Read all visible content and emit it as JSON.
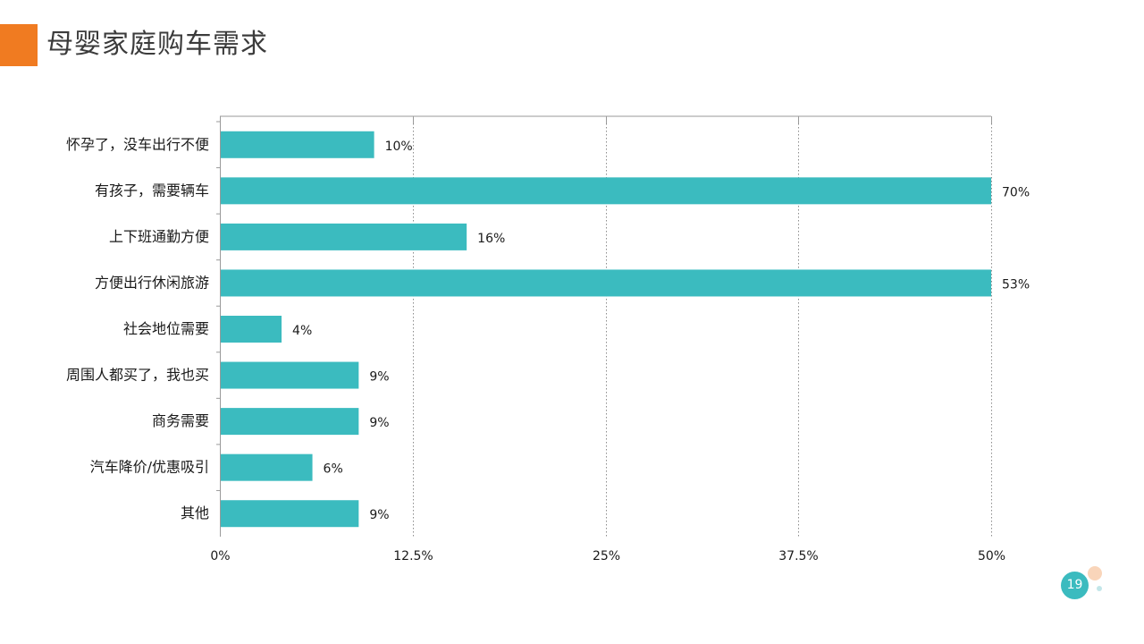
{
  "slide": {
    "title": "母婴家庭购车需求",
    "page_number": "19"
  },
  "colors": {
    "accent": "#F07B21",
    "bar": "#3BBBBF",
    "page_badge": "#3BBBBF",
    "dot_orange": "#F5B98C",
    "dot_teal": "#A8DCDF",
    "text": "#1a1a1a",
    "grid": "#8c8c8c"
  },
  "chart_data": {
    "type": "bar",
    "orientation": "horizontal",
    "title": "",
    "xlabel": "",
    "ylabel": "",
    "categories": [
      "怀孕了，没车出行不便",
      "有孩子，需要辆车",
      "上下班通勤方便",
      "方便出行休闲旅游",
      "社会地位需要",
      "周围人都买了，我也买",
      "商务需要",
      "汽车降价/优惠吸引",
      "其他"
    ],
    "values": [
      10,
      70,
      16,
      53,
      4,
      9,
      9,
      6,
      9
    ],
    "value_labels": [
      "10%",
      "70%",
      "16%",
      "53%",
      "4%",
      "9%",
      "9%",
      "6%",
      "9%"
    ],
    "xlim": [
      0,
      50
    ],
    "ticks": [
      0,
      12.5,
      25,
      37.5,
      50
    ],
    "tick_labels": [
      "0%",
      "12.5%",
      "25%",
      "37.5%",
      "50%"
    ],
    "grid": "vertical-dotted",
    "legend": "none"
  }
}
